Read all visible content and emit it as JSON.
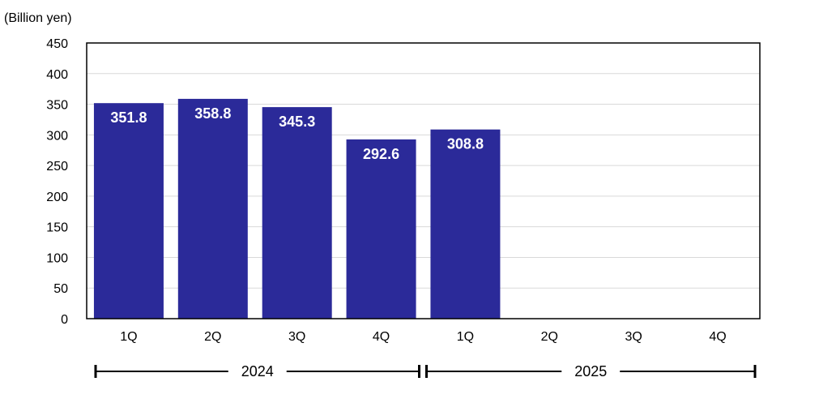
{
  "chart_data": {
    "type": "bar",
    "unit_label": "(Billion yen)",
    "categories": [
      "1Q",
      "2Q",
      "3Q",
      "4Q",
      "1Q",
      "2Q",
      "3Q",
      "4Q"
    ],
    "groups": [
      {
        "label": "2024",
        "start": 0,
        "end": 3
      },
      {
        "label": "2025",
        "start": 4,
        "end": 7
      }
    ],
    "values": [
      351.8,
      358.8,
      345.3,
      292.6,
      308.8,
      null,
      null,
      null
    ],
    "data_labels": [
      "351.8",
      "358.8",
      "345.3",
      "292.6",
      "308.8",
      "",
      "",
      ""
    ],
    "ylim": [
      0,
      450
    ],
    "yticks": [
      0,
      50,
      100,
      150,
      200,
      250,
      300,
      350,
      400,
      450
    ],
    "grid": true,
    "colors": {
      "bar": "#2b2a99",
      "grid": "#d9d9d9",
      "axis": "#000000"
    }
  }
}
